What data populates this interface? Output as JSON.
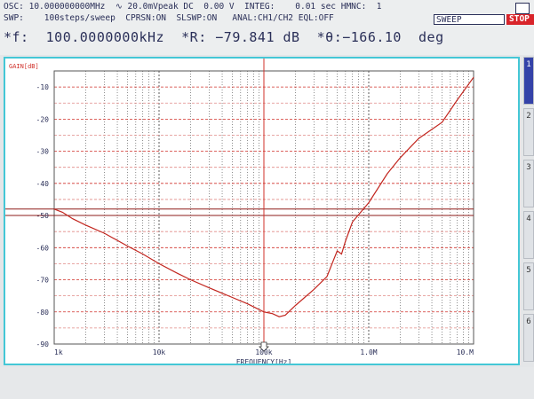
{
  "status": {
    "line1": "OSC: 10.000000000MHz  ∿ 20.0mVpeak DC  0.00 V  INTEG:    0.01 sec HMNC:  1",
    "line2": "SWP:    100steps/sweep  CPRSN:ON  SLSWP:ON   ANAL:CH1/CH2 EQL:OFF",
    "sweep_label": "SWEEP",
    "stop_label": "STOP",
    "line3": "*f:  100.0000000kHz  *R: −79.841 dB  *θ:−166.10  deg"
  },
  "softkeys": [
    "1",
    "2",
    "3",
    "4",
    "5",
    "6"
  ],
  "chart_data": {
    "type": "line",
    "ylabel": "GAIN[dB]",
    "xlabel": "FREQUENCY[Hz]",
    "x_scale": "log",
    "xlim": [
      1000,
      10000000
    ],
    "ylim": [
      -90,
      -5
    ],
    "grid": true,
    "xticks": [
      {
        "value": 1000,
        "label": "1k"
      },
      {
        "value": 10000,
        "label": "10k"
      },
      {
        "value": 100000,
        "label": "100k"
      },
      {
        "value": 1000000,
        "label": "1.0M"
      },
      {
        "value": 10000000,
        "label": "10.M"
      }
    ],
    "yticks": [
      {
        "value": -10,
        "label": "-10"
      },
      {
        "value": -20,
        "label": "-20"
      },
      {
        "value": -30,
        "label": "-30"
      },
      {
        "value": -40,
        "label": "-40"
      },
      {
        "value": -50,
        "label": "-50"
      },
      {
        "value": -60,
        "label": "-60"
      },
      {
        "value": -70,
        "label": "-70"
      },
      {
        "value": -80,
        "label": "-80"
      },
      {
        "value": -90,
        "label": "-90"
      }
    ],
    "marker": {
      "x": 100000,
      "y": -79.841
    },
    "reference_lines": [
      -48,
      -50
    ],
    "series": [
      {
        "x": [
          1000,
          1200,
          1500,
          2000,
          3000,
          5000,
          7000,
          10000,
          15000,
          20000,
          30000,
          50000,
          70000,
          100000,
          120000,
          140000,
          160000,
          200000,
          300000,
          400000,
          500000,
          550000,
          600000,
          700000,
          1000000,
          1500000,
          2000000,
          3000000,
          5000000,
          7000000,
          10000000
        ],
        "y": [
          -48,
          -49,
          -51,
          -53,
          -55.5,
          -59.5,
          -62,
          -65,
          -68,
          -70,
          -72.5,
          -75.5,
          -77.5,
          -80,
          -80.5,
          -81.5,
          -81,
          -78,
          -73,
          -69,
          -61,
          -62,
          -58,
          -52,
          -46,
          -37,
          -32,
          -26,
          -21,
          -14,
          -7
        ]
      }
    ]
  }
}
